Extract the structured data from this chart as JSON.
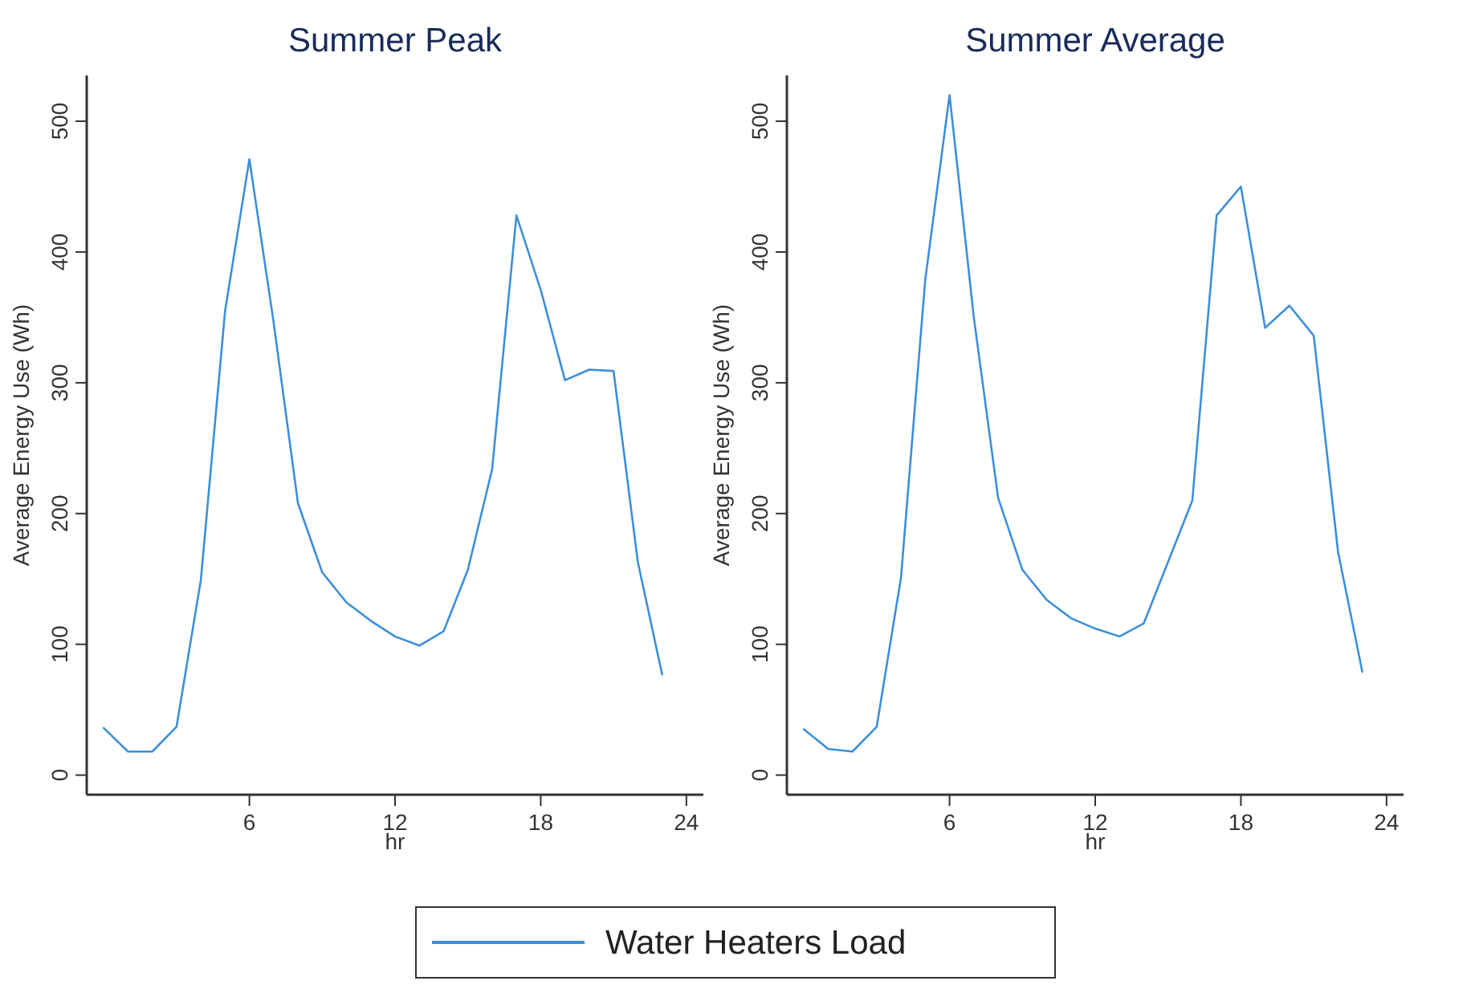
{
  "chart_data": [
    {
      "type": "line",
      "title": "Summer Peak",
      "xlabel": "hr",
      "ylabel": "Average Energy Use (Wh)",
      "x": [
        0,
        1,
        2,
        3,
        4,
        5,
        6,
        7,
        8,
        9,
        10,
        11,
        12,
        13,
        14,
        15,
        16,
        17,
        18,
        19,
        20,
        21,
        22,
        23
      ],
      "series": [
        {
          "name": "Water Heaters Load",
          "color": "#3d8fd9",
          "values": [
            36,
            18,
            18,
            37,
            149,
            355,
            471,
            346,
            208,
            155,
            132,
            118,
            106,
            99,
            110,
            157,
            234,
            428,
            371,
            302,
            310,
            309,
            163,
            77
          ]
        }
      ],
      "xlim": [
        -0.7,
        24.7
      ],
      "xticks": [
        6,
        12,
        18,
        24
      ],
      "ylim": [
        -15,
        535
      ],
      "yticks": [
        0,
        100,
        200,
        300,
        400,
        500
      ],
      "grid": false,
      "legend": "bottom",
      "marker": "none",
      "line_style": "solid"
    },
    {
      "type": "line",
      "title": "Summer Average",
      "xlabel": "hr",
      "ylabel": "Average Energy Use (Wh)",
      "x": [
        0,
        1,
        2,
        3,
        4,
        5,
        6,
        7,
        8,
        9,
        10,
        11,
        12,
        13,
        14,
        15,
        16,
        17,
        18,
        19,
        20,
        21,
        22,
        23
      ],
      "series": [
        {
          "color": "#3d8fd9",
          "values": [
            35,
            20,
            18,
            37,
            151,
            379,
            520,
            350,
            212,
            157,
            134,
            120,
            112,
            106,
            116,
            163,
            210,
            428,
            450,
            342,
            359,
            336,
            171,
            79
          ]
        }
      ],
      "xlim": [
        -0.7,
        24.7
      ],
      "xticks": [
        6,
        12,
        18,
        24
      ],
      "ylim": [
        -15,
        535
      ],
      "yticks": [
        0,
        100,
        200,
        300,
        400,
        500
      ],
      "grid": false,
      "marker": "none",
      "line_style": "solid"
    }
  ]
}
